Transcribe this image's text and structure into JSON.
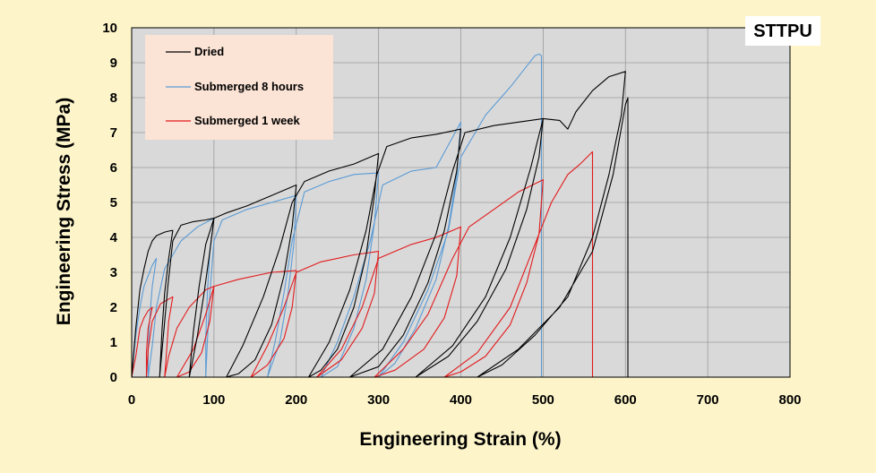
{
  "chart_data": {
    "type": "line",
    "title": "STTPU",
    "xlabel": "Engineering Strain (%)",
    "ylabel": "Engineering Stress (MPa)",
    "xlim": [
      0,
      800
    ],
    "ylim": [
      0,
      10
    ],
    "xticks": [
      "0",
      "100",
      "200",
      "300",
      "400",
      "500",
      "600",
      "700",
      "800"
    ],
    "yticks": [
      "0",
      "1",
      "2",
      "3",
      "4",
      "5",
      "6",
      "7",
      "8",
      "9",
      "10"
    ],
    "grid": true,
    "legend_position": "top-left",
    "series": [
      {
        "name": "Dried",
        "color": "#000000",
        "points": [
          [
            0,
            0
          ],
          [
            5,
            1.4
          ],
          [
            10,
            2.5
          ],
          [
            15,
            3.1
          ],
          [
            20,
            3.6
          ],
          [
            25,
            3.9
          ],
          [
            30,
            4.05
          ],
          [
            35,
            4.1
          ],
          [
            40,
            4.15
          ],
          [
            45,
            4.18
          ],
          [
            50,
            4.2
          ],
          [
            45,
            3.4
          ],
          [
            40,
            2.4
          ],
          [
            37,
            1.4
          ],
          [
            35,
            0.5
          ],
          [
            34,
            0
          ],
          [
            39,
            1.3
          ],
          [
            44,
            2.6
          ],
          [
            50,
            3.9
          ],
          [
            60,
            4.35
          ],
          [
            75,
            4.45
          ],
          [
            90,
            4.5
          ],
          [
            100,
            4.55
          ],
          [
            95,
            3.6
          ],
          [
            88,
            2.4
          ],
          [
            80,
            1.2
          ],
          [
            73,
            0.35
          ],
          [
            70,
            0
          ],
          [
            75,
            1.3
          ],
          [
            82,
            2.6
          ],
          [
            90,
            3.8
          ],
          [
            100,
            4.55
          ],
          [
            115,
            4.7
          ],
          [
            140,
            4.9
          ],
          [
            170,
            5.2
          ],
          [
            200,
            5.5
          ],
          [
            195,
            4.3
          ],
          [
            185,
            2.9
          ],
          [
            170,
            1.5
          ],
          [
            150,
            0.5
          ],
          [
            130,
            0.1
          ],
          [
            115,
            0
          ],
          [
            135,
            0.9
          ],
          [
            160,
            2.3
          ],
          [
            180,
            3.7
          ],
          [
            195,
            5.0
          ],
          [
            210,
            5.6
          ],
          [
            240,
            5.9
          ],
          [
            270,
            6.1
          ],
          [
            300,
            6.4
          ],
          [
            295,
            5.2
          ],
          [
            285,
            3.5
          ],
          [
            270,
            2.0
          ],
          [
            250,
            0.8
          ],
          [
            230,
            0.2
          ],
          [
            215,
            0
          ],
          [
            240,
            1.0
          ],
          [
            265,
            2.5
          ],
          [
            285,
            4.2
          ],
          [
            298,
            5.8
          ],
          [
            310,
            6.6
          ],
          [
            340,
            6.85
          ],
          [
            370,
            6.95
          ],
          [
            400,
            7.1
          ],
          [
            395,
            5.9
          ],
          [
            380,
            4.2
          ],
          [
            360,
            2.7
          ],
          [
            330,
            1.2
          ],
          [
            300,
            0.3
          ],
          [
            265,
            0
          ],
          [
            305,
            0.8
          ],
          [
            340,
            2.3
          ],
          [
            370,
            4.1
          ],
          [
            390,
            5.9
          ],
          [
            405,
            7.0
          ],
          [
            440,
            7.2
          ],
          [
            470,
            7.3
          ],
          [
            500,
            7.4
          ],
          [
            495,
            6.3
          ],
          [
            480,
            4.8
          ],
          [
            455,
            3.1
          ],
          [
            420,
            1.6
          ],
          [
            385,
            0.6
          ],
          [
            345,
            0
          ],
          [
            390,
            0.9
          ],
          [
            430,
            2.3
          ],
          [
            460,
            4.0
          ],
          [
            485,
            6.0
          ],
          [
            500,
            7.4
          ],
          [
            520,
            7.35
          ],
          [
            530,
            7.1
          ],
          [
            540,
            7.6
          ],
          [
            560,
            8.2
          ],
          [
            580,
            8.6
          ],
          [
            600,
            8.75
          ],
          [
            595,
            7.5
          ],
          [
            580,
            5.8
          ],
          [
            560,
            4.0
          ],
          [
            530,
            2.3
          ],
          [
            490,
            1.2
          ],
          [
            450,
            0.35
          ],
          [
            420,
            0
          ],
          [
            470,
            0.8
          ],
          [
            520,
            2.0
          ],
          [
            560,
            3.6
          ],
          [
            585,
            5.8
          ],
          [
            600,
            7.8
          ],
          [
            603,
            8.0
          ],
          [
            603,
            0
          ]
        ]
      },
      {
        "name": "Submerged 8 hours",
        "color": "#5b9bd5",
        "points": [
          [
            0,
            0
          ],
          [
            5,
            1.2
          ],
          [
            10,
            2.0
          ],
          [
            15,
            2.6
          ],
          [
            20,
            2.9
          ],
          [
            25,
            3.2
          ],
          [
            30,
            3.4
          ],
          [
            25,
            2.6
          ],
          [
            22,
            1.7
          ],
          [
            20,
            0.8
          ],
          [
            20,
            0
          ],
          [
            25,
            0.9
          ],
          [
            30,
            2.0
          ],
          [
            40,
            3.1
          ],
          [
            60,
            3.9
          ],
          [
            80,
            4.3
          ],
          [
            100,
            4.55
          ],
          [
            95,
            3.6
          ],
          [
            92,
            2.4
          ],
          [
            90,
            1.1
          ],
          [
            90,
            0
          ],
          [
            92,
            1.0
          ],
          [
            95,
            2.4
          ],
          [
            100,
            3.9
          ],
          [
            110,
            4.5
          ],
          [
            140,
            4.8
          ],
          [
            170,
            5.0
          ],
          [
            200,
            5.2
          ],
          [
            197,
            3.8
          ],
          [
            190,
            2.4
          ],
          [
            180,
            1.0
          ],
          [
            165,
            0
          ],
          [
            175,
            1.1
          ],
          [
            185,
            2.4
          ],
          [
            195,
            3.9
          ],
          [
            210,
            5.3
          ],
          [
            240,
            5.6
          ],
          [
            270,
            5.8
          ],
          [
            300,
            5.85
          ],
          [
            295,
            4.4
          ],
          [
            285,
            2.8
          ],
          [
            270,
            1.4
          ],
          [
            250,
            0.3
          ],
          [
            230,
            0
          ],
          [
            250,
            1.0
          ],
          [
            270,
            2.3
          ],
          [
            290,
            3.9
          ],
          [
            305,
            5.5
          ],
          [
            340,
            5.9
          ],
          [
            370,
            6.0
          ],
          [
            400,
            7.3
          ],
          [
            395,
            5.8
          ],
          [
            385,
            4.3
          ],
          [
            370,
            2.8
          ],
          [
            345,
            1.4
          ],
          [
            320,
            0.4
          ],
          [
            300,
            0
          ],
          [
            330,
            1.0
          ],
          [
            360,
            2.5
          ],
          [
            385,
            4.2
          ],
          [
            400,
            6.3
          ],
          [
            430,
            7.5
          ],
          [
            460,
            8.3
          ],
          [
            490,
            9.2
          ],
          [
            495,
            9.25
          ],
          [
            498,
            9.2
          ],
          [
            498,
            0
          ]
        ]
      },
      {
        "name": "Submerged 1 week",
        "color": "#e31a1c",
        "points": [
          [
            0,
            0
          ],
          [
            5,
            0.6
          ],
          [
            10,
            1.4
          ],
          [
            15,
            1.7
          ],
          [
            20,
            1.9
          ],
          [
            25,
            2.0
          ],
          [
            20,
            1.4
          ],
          [
            18,
            0.7
          ],
          [
            18,
            0
          ],
          [
            20,
            0.8
          ],
          [
            25,
            1.6
          ],
          [
            35,
            2.1
          ],
          [
            50,
            2.3
          ],
          [
            45,
            1.6
          ],
          [
            42,
            0.6
          ],
          [
            40,
            0
          ],
          [
            45,
            0.6
          ],
          [
            55,
            1.4
          ],
          [
            70,
            2.0
          ],
          [
            90,
            2.5
          ],
          [
            100,
            2.6
          ],
          [
            95,
            1.6
          ],
          [
            85,
            0.7
          ],
          [
            70,
            0.15
          ],
          [
            55,
            0
          ],
          [
            75,
            0.8
          ],
          [
            90,
            1.8
          ],
          [
            100,
            2.6
          ],
          [
            130,
            2.8
          ],
          [
            170,
            3.0
          ],
          [
            200,
            3.05
          ],
          [
            195,
            2.0
          ],
          [
            185,
            1.1
          ],
          [
            165,
            0.35
          ],
          [
            145,
            0
          ],
          [
            165,
            0.9
          ],
          [
            185,
            2.0
          ],
          [
            200,
            3.0
          ],
          [
            230,
            3.3
          ],
          [
            270,
            3.5
          ],
          [
            300,
            3.6
          ],
          [
            295,
            2.4
          ],
          [
            280,
            1.4
          ],
          [
            255,
            0.5
          ],
          [
            225,
            0
          ],
          [
            255,
            0.8
          ],
          [
            280,
            2.0
          ],
          [
            300,
            3.4
          ],
          [
            340,
            3.8
          ],
          [
            370,
            4.0
          ],
          [
            400,
            4.3
          ],
          [
            395,
            2.9
          ],
          [
            380,
            1.7
          ],
          [
            355,
            0.8
          ],
          [
            320,
            0.2
          ],
          [
            295,
            0
          ],
          [
            330,
            0.8
          ],
          [
            360,
            1.8
          ],
          [
            390,
            3.4
          ],
          [
            410,
            4.3
          ],
          [
            440,
            4.8
          ],
          [
            470,
            5.3
          ],
          [
            500,
            5.65
          ],
          [
            495,
            4.1
          ],
          [
            480,
            2.7
          ],
          [
            460,
            1.5
          ],
          [
            430,
            0.6
          ],
          [
            400,
            0.15
          ],
          [
            380,
            0
          ],
          [
            420,
            0.7
          ],
          [
            460,
            2.0
          ],
          [
            490,
            3.8
          ],
          [
            510,
            5.0
          ],
          [
            530,
            5.8
          ],
          [
            545,
            6.1
          ],
          [
            560,
            6.45
          ],
          [
            560,
            0
          ]
        ]
      }
    ]
  }
}
